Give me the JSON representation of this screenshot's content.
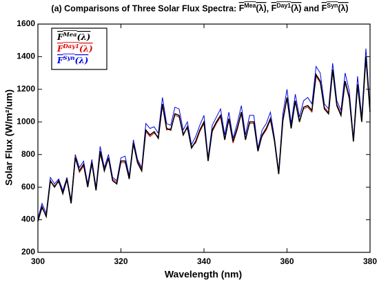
{
  "chart_data": {
    "type": "line",
    "title": "(a) Comparisons of Three Solar Flux Spectra: FMea(λ), FDay1(λ) and FSyn(λ)",
    "x_label": "Wavelength (nm)",
    "y_label": "Solar Flux (W/m²/um)",
    "x": [
      300,
      301,
      302,
      303,
      304,
      305,
      306,
      307,
      308,
      309,
      310,
      311,
      312,
      313,
      314,
      315,
      316,
      317,
      318,
      319,
      320,
      321,
      322,
      323,
      324,
      325,
      326,
      327,
      328,
      329,
      330,
      331,
      332,
      333,
      334,
      335,
      336,
      337,
      338,
      339,
      340,
      341,
      342,
      343,
      344,
      345,
      346,
      347,
      348,
      349,
      350,
      351,
      352,
      353,
      354,
      355,
      356,
      357,
      358,
      359,
      360,
      361,
      362,
      363,
      364,
      365,
      366,
      367,
      368,
      369,
      370,
      371,
      372,
      373,
      374,
      375,
      376,
      377,
      378,
      379,
      380
    ],
    "series": [
      {
        "name": "FMea(λ)",
        "color": "#000000",
        "values": [
          390,
          480,
          420,
          640,
          600,
          640,
          560,
          650,
          500,
          780,
          700,
          740,
          600,
          750,
          580,
          820,
          700,
          780,
          640,
          620,
          760,
          760,
          650,
          870,
          750,
          700,
          950,
          920,
          940,
          900,
          1110,
          960,
          950,
          1050,
          1040,
          920,
          970,
          840,
          880,
          950,
          1000,
          760,
          950,
          1000,
          1040,
          890,
          1020,
          880,
          960,
          1060,
          890,
          1000,
          1000,
          820,
          920,
          960,
          1020,
          880,
          680,
          1010,
          1150,
          960,
          1130,
          1000,
          1090,
          1100,
          1070,
          1290,
          1250,
          1080,
          1050,
          1320,
          1100,
          1040,
          1250,
          1150,
          880,
          1230,
          1000,
          1400,
          1060
        ]
      },
      {
        "name": "FDay1(λ)",
        "color": "#e00000",
        "values": [
          400,
          470,
          430,
          630,
          610,
          630,
          570,
          640,
          510,
          790,
          690,
          730,
          610,
          740,
          590,
          800,
          710,
          770,
          650,
          630,
          750,
          750,
          660,
          860,
          760,
          710,
          940,
          910,
          930,
          910,
          1100,
          950,
          960,
          1040,
          1030,
          930,
          960,
          850,
          870,
          940,
          990,
          770,
          940,
          990,
          1030,
          900,
          1010,
          870,
          950,
          1050,
          900,
          990,
          990,
          830,
          910,
          950,
          1010,
          890,
          690,
          1000,
          1140,
          970,
          1120,
          1010,
          1080,
          1090,
          1060,
          1280,
          1240,
          1090,
          1060,
          1310,
          1110,
          1050,
          1240,
          1140,
          890,
          1220,
          1010,
          1390,
          1070
        ]
      },
      {
        "name": "FSyn(λ)",
        "color": "#0000e0",
        "values": [
          410,
          500,
          440,
          660,
          620,
          650,
          580,
          660,
          520,
          800,
          720,
          760,
          620,
          770,
          600,
          850,
          720,
          800,
          660,
          640,
          780,
          790,
          670,
          890,
          770,
          720,
          990,
          960,
          970,
          930,
          1150,
          990,
          980,
          1090,
          1080,
          950,
          1000,
          860,
          910,
          980,
          1040,
          780,
          980,
          1030,
          1080,
          920,
          1060,
          900,
          990,
          1100,
          920,
          1040,
          1040,
          840,
          950,
          990,
          1060,
          900,
          700,
          1050,
          1200,
          990,
          1170,
          1030,
          1130,
          1150,
          1110,
          1340,
          1300,
          1110,
          1080,
          1360,
          1130,
          1070,
          1300,
          1190,
          900,
          1280,
          1030,
          1450,
          1080
        ]
      }
    ],
    "xlim": [
      300,
      380
    ],
    "xticks": [
      300,
      320,
      340,
      360,
      380
    ],
    "ylim": [
      200,
      1600
    ],
    "yticks": [
      200,
      400,
      600,
      800,
      1000,
      1200,
      1400,
      1600
    ],
    "legend": "upper left",
    "grid": false
  }
}
